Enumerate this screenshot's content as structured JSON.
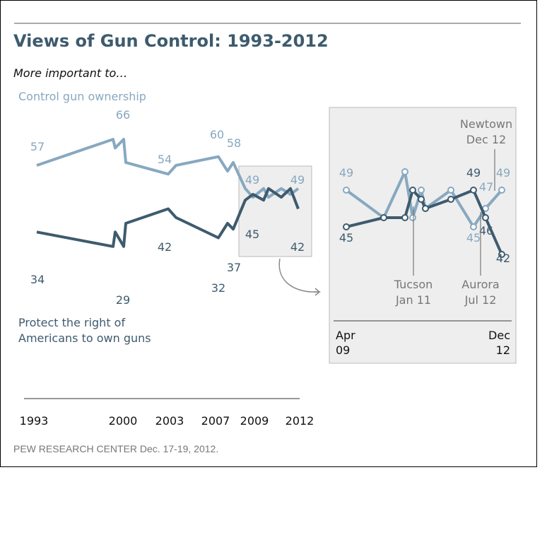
{
  "title": "Views of Gun Control: 1993-2012",
  "subtitle": "More important to…",
  "source": "PEW RESEARCH CENTER Dec. 17-19, 2012.",
  "colors": {
    "control": "#87a8c0",
    "protect": "#3e5b6e",
    "inset_bg": "#eeeeee",
    "axis": "#777777"
  },
  "chart_data": [
    {
      "type": "line",
      "x_tick_labels": [
        "1993",
        "2000",
        "2003",
        "2007",
        "2009",
        "2012"
      ],
      "series": [
        {
          "name": "Control gun ownership",
          "points": [
            [
              "1993",
              57
            ],
            [
              "1999",
              66
            ],
            [
              "1999",
              63
            ],
            [
              "2000",
              66
            ],
            [
              "2000",
              58
            ],
            [
              "2003",
              54
            ],
            [
              "2003",
              57
            ],
            [
              "2007",
              60
            ],
            [
              "2008",
              55
            ],
            [
              "2008",
              58
            ],
            [
              "2009",
              49
            ],
            [
              "2009",
              46
            ],
            [
              "2010",
              49
            ],
            [
              "2010",
              46
            ],
            [
              "2011",
              49
            ],
            [
              "2012",
              47
            ],
            [
              "2012",
              49
            ]
          ],
          "labels": [
            "57",
            "66",
            "54",
            "60",
            "58",
            "49",
            "49"
          ]
        },
        {
          "name": "Protect the right of Americans to own guns",
          "points": [
            [
              "1993",
              34
            ],
            [
              "1999",
              29
            ],
            [
              "1999",
              34
            ],
            [
              "2000",
              29
            ],
            [
              "2000",
              37
            ],
            [
              "2003",
              42
            ],
            [
              "2003",
              39
            ],
            [
              "2007",
              32
            ],
            [
              "2008",
              37
            ],
            [
              "2008",
              35
            ],
            [
              "2009",
              45
            ],
            [
              "2009",
              47
            ],
            [
              "2010",
              45
            ],
            [
              "2010",
              49
            ],
            [
              "2011",
              46
            ],
            [
              "2012",
              49
            ],
            [
              "2012",
              42
            ]
          ],
          "labels": [
            "34",
            "29",
            "42",
            "32",
            "37",
            "45",
            "42"
          ]
        }
      ]
    },
    {
      "type": "line",
      "x_tick_labels": [
        "Apr 09",
        "Dec 12"
      ],
      "series": [
        {
          "name": "Control gun ownership",
          "points": [
            [
              "Apr 09",
              49
            ],
            [
              "",
              46
            ],
            [
              "",
              51
            ],
            [
              "Jan 11",
              46
            ],
            [
              "",
              49
            ],
            [
              "",
              47
            ],
            [
              "",
              49
            ],
            [
              "Jul 12",
              45
            ],
            [
              "",
              47
            ],
            [
              "Dec 12",
              49
            ]
          ],
          "labels": [
            "49",
            "45",
            "47",
            "49"
          ]
        },
        {
          "name": "Protect the right of Americans to own guns",
          "points": [
            [
              "Apr 09",
              45
            ],
            [
              "",
              46
            ],
            [
              "",
              46
            ],
            [
              "Jan 11",
              49
            ],
            [
              "",
              48
            ],
            [
              "",
              47
            ],
            [
              "",
              48
            ],
            [
              "Jul 12",
              49
            ],
            [
              "",
              46
            ],
            [
              "Dec 12",
              42
            ]
          ],
          "labels": [
            "45",
            "49",
            "46",
            "42"
          ]
        }
      ],
      "annotations": [
        {
          "label": "Newtown",
          "date": "Dec 12"
        },
        {
          "label": "Tucson",
          "date": "Jan 11"
        },
        {
          "label": "Aurora",
          "date": "Jul 12"
        }
      ]
    }
  ]
}
